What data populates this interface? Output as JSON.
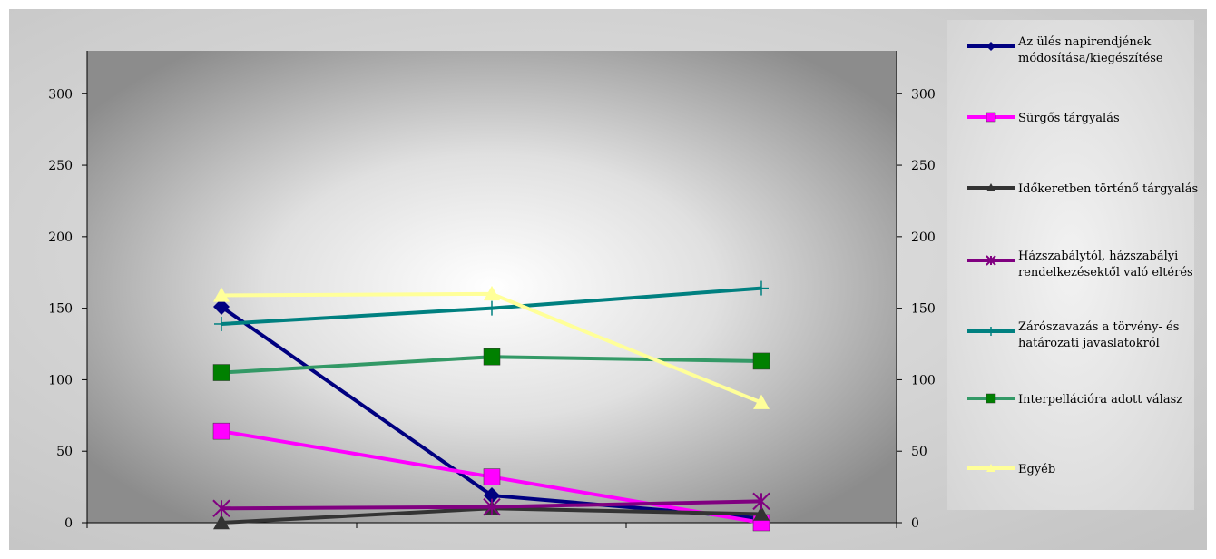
{
  "chart_data": {
    "type": "line",
    "categories": [
      "",
      "",
      ""
    ],
    "ylim": [
      0,
      330
    ],
    "yticks": [
      0,
      50,
      100,
      150,
      200,
      250,
      300
    ],
    "grid": false,
    "legend_position": "right",
    "series": [
      {
        "name": "Az ülés napirendjének módosítása/kiegészítése",
        "values": [
          151,
          19,
          3
        ],
        "color": "#000080",
        "marker": "diamond",
        "marker_color": "#000080"
      },
      {
        "name": "Sürgős tárgyalás",
        "values": [
          64,
          32,
          0
        ],
        "color": "#ff00ff",
        "marker": "square",
        "marker_color": "#ff00ff"
      },
      {
        "name": "Időkeretben történő tárgyalás",
        "values": [
          0,
          10,
          6
        ],
        "color": "#333333",
        "marker": "triangle",
        "marker_color": "#333333"
      },
      {
        "name": "Házszabálytól, házszabályi rendelkezésektől való eltérés",
        "values": [
          10,
          11,
          15
        ],
        "color": "#800080",
        "marker": "star",
        "marker_color": "#800080"
      },
      {
        "name": "Zárószavazás a törvény- és határozati javaslatokról",
        "values": [
          139,
          150,
          164
        ],
        "color": "#008080",
        "marker": "plus",
        "marker_color": "#008080"
      },
      {
        "name": "Interpellációra adott válasz",
        "values": [
          105,
          116,
          113
        ],
        "color": "#339966",
        "marker": "square",
        "marker_color": "#008000"
      },
      {
        "name": "Egyéb",
        "values": [
          159,
          160,
          84
        ],
        "color": "#ffff99",
        "marker": "triangle",
        "marker_color": "#ffff99"
      }
    ]
  }
}
